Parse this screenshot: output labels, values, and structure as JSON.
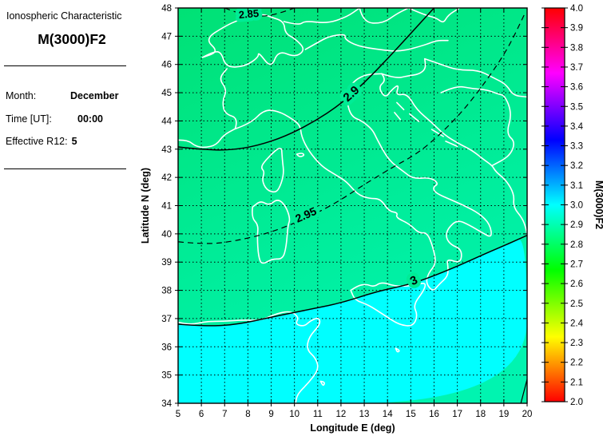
{
  "sidebar": {
    "title": "Ionospheric Characteristic",
    "subtitle": "M(3000)F2",
    "fields": [
      {
        "label": "Month:",
        "value": "December"
      },
      {
        "label": "Time [UT]:",
        "value": "00:00"
      },
      {
        "label": "Effective R12:",
        "value": "5"
      }
    ]
  },
  "chart_data": {
    "type": "contour-map",
    "title": "M(3000)F2",
    "xlabel": "Longitude E (deg)",
    "ylabel": "Latitude N (deg)",
    "xlim": [
      5,
      20
    ],
    "ylim": [
      34,
      48
    ],
    "xticks": [
      5,
      6,
      7,
      8,
      9,
      10,
      11,
      12,
      13,
      14,
      15,
      16,
      17,
      18,
      19,
      20
    ],
    "yticks": [
      34,
      35,
      36,
      37,
      38,
      39,
      40,
      41,
      42,
      43,
      44,
      45,
      46,
      47,
      48
    ],
    "grid": "dotted",
    "colors": {
      "green_low": "#00E175",
      "green_high": "#00F4B0",
      "cyan_region": "#00FFFF",
      "corner_patch": "#00F2A6",
      "coastline": "#FFFFFF",
      "contour": "#000000",
      "halo": "#00EC96"
    },
    "colorbar": {
      "label": "M(3000)F2",
      "min": 2.0,
      "max": 4.0,
      "tick_labels": [
        "4.0",
        "3.9",
        "3.8",
        "3.7",
        "3.6",
        "3.5",
        "3.4",
        "3.3",
        "3.2",
        "3.1",
        "3.0",
        "2.9",
        "2.8",
        "2.7",
        "2.6",
        "2.5",
        "2.4",
        "2.3",
        "2.2",
        "2.1",
        "2.0"
      ],
      "colormap": "hsv",
      "stops": [
        {
          "v": 4.0,
          "c": "#FF0000"
        },
        {
          "v": 3.67,
          "c": "#FF00FF"
        },
        {
          "v": 3.33,
          "c": "#0000FF"
        },
        {
          "v": 3.0,
          "c": "#00FFFF"
        },
        {
          "v": 2.67,
          "c": "#00FF00"
        },
        {
          "v": 2.33,
          "c": "#FFFF00"
        },
        {
          "v": 2.0,
          "c": "#FF0000"
        }
      ]
    },
    "contours": [
      {
        "value": 2.85,
        "label": "2.85",
        "style": "dashed",
        "label_pos": [
          8.05,
          47.66
        ],
        "label_rot": -5,
        "label_size": 13,
        "points": [
          [
            7.0,
            48.0
          ],
          [
            7.5,
            47.84
          ],
          [
            8.0,
            47.74
          ],
          [
            8.7,
            47.7
          ],
          [
            9.3,
            47.8
          ],
          [
            10.0,
            48.0
          ]
        ]
      },
      {
        "value": 2.9,
        "label": "2.9",
        "style": "solid",
        "label_pos": [
          12.55,
          44.86
        ],
        "label_rot": -42,
        "label_size": 15,
        "points": [
          [
            5,
            43.08
          ],
          [
            6.2,
            42.97
          ],
          [
            7.3,
            42.97
          ],
          [
            8.4,
            43.12
          ],
          [
            9.6,
            43.45
          ],
          [
            10.8,
            43.95
          ],
          [
            12.0,
            44.6
          ],
          [
            13.0,
            45.35
          ],
          [
            14.0,
            46.2
          ],
          [
            15.0,
            47.1
          ],
          [
            16.0,
            48.0
          ]
        ]
      },
      {
        "value": 2.95,
        "label": "2.95",
        "style": "dashed",
        "label_pos": [
          10.56,
          40.55
        ],
        "label_rot": -24,
        "label_size": 14,
        "points": [
          [
            5,
            39.72
          ],
          [
            6.2,
            39.62
          ],
          [
            7.5,
            39.75
          ],
          [
            9.0,
            40.05
          ],
          [
            10.5,
            40.55
          ],
          [
            11.8,
            41.1
          ],
          [
            13.0,
            41.75
          ],
          [
            14.2,
            42.35
          ],
          [
            15.3,
            42.85
          ],
          [
            16.3,
            43.55
          ],
          [
            17.4,
            44.5
          ],
          [
            18.4,
            45.6
          ],
          [
            19.2,
            46.6
          ],
          [
            19.9,
            47.8
          ]
        ]
      },
      {
        "value": 3,
        "label": "3",
        "style": "solid",
        "label_pos": [
          15.2,
          38.22
        ],
        "label_rot": -25,
        "label_size": 15,
        "points": [
          [
            5,
            36.8
          ],
          [
            6.3,
            36.72
          ],
          [
            7.6,
            36.8
          ],
          [
            9.0,
            37.05
          ],
          [
            10.5,
            37.3
          ],
          [
            12.0,
            37.55
          ],
          [
            13.5,
            37.95
          ],
          [
            14.9,
            38.2
          ],
          [
            15.8,
            38.45
          ],
          [
            17.0,
            38.85
          ],
          [
            18.2,
            39.3
          ],
          [
            19.2,
            39.65
          ],
          [
            20,
            39.95
          ]
        ]
      }
    ],
    "corner_contour": [
      [
        19.73,
        34
      ],
      [
        20,
        34.85
      ]
    ],
    "coastlines": [
      [
        [
          5,
          43.32
        ],
        [
          5.4,
          43.33
        ],
        [
          5.75,
          43.1
        ],
        [
          6.15,
          43.05
        ],
        [
          6.65,
          43.15
        ],
        [
          6.95,
          43.5
        ],
        [
          7.45,
          43.72
        ]
      ],
      [
        [
          7.45,
          43.72
        ],
        [
          7.6,
          44.1
        ],
        [
          7.0,
          44.25
        ],
        [
          6.9,
          44.7
        ],
        [
          7.1,
          45.1
        ],
        [
          6.75,
          45.5
        ],
        [
          7.1,
          45.85
        ]
      ],
      [
        [
          7.45,
          43.72
        ],
        [
          8.1,
          43.9
        ],
        [
          8.7,
          44.4
        ],
        [
          9.3,
          44.35
        ],
        [
          9.85,
          44.1
        ],
        [
          10.25,
          43.85
        ],
        [
          10.3,
          43.45
        ],
        [
          10.6,
          42.95
        ],
        [
          11.15,
          42.4
        ],
        [
          11.75,
          42.1
        ],
        [
          12.25,
          41.85
        ],
        [
          12.7,
          41.4
        ],
        [
          13.2,
          41.25
        ],
        [
          13.7,
          41.25
        ],
        [
          14.05,
          40.8
        ],
        [
          14.45,
          40.75
        ],
        [
          14.35,
          40.58
        ],
        [
          14.95,
          40.35
        ],
        [
          15.35,
          40.02
        ],
        [
          15.7,
          40.05
        ],
        [
          15.95,
          39.55
        ],
        [
          16.1,
          38.95
        ],
        [
          15.75,
          38.6
        ],
        [
          15.65,
          38.25
        ],
        [
          15.95,
          37.95
        ],
        [
          16.2,
          38.2
        ],
        [
          16.6,
          38.5
        ],
        [
          16.6,
          38.85
        ],
        [
          16.55,
          39.12
        ],
        [
          17.15,
          38.95
        ],
        [
          17.2,
          39.45
        ],
        [
          16.7,
          39.62
        ],
        [
          16.5,
          39.9
        ],
        [
          16.6,
          40.2
        ],
        [
          17.0,
          40.5
        ],
        [
          17.5,
          40.32
        ],
        [
          18.05,
          40.05
        ],
        [
          18.5,
          39.85
        ],
        [
          18.4,
          40.35
        ],
        [
          17.95,
          40.72
        ],
        [
          17.25,
          41.02
        ],
        [
          16.8,
          41.18
        ],
        [
          16.05,
          41.45
        ],
        [
          15.95,
          41.65
        ],
        [
          16.2,
          41.78
        ],
        [
          15.85,
          42.0
        ],
        [
          15.1,
          41.95
        ],
        [
          14.7,
          42.2
        ],
        [
          14.05,
          42.6
        ],
        [
          13.55,
          43.35
        ],
        [
          13.35,
          43.7
        ],
        [
          12.9,
          44.0
        ],
        [
          12.45,
          44.15
        ],
        [
          12.25,
          44.65
        ],
        [
          12.3,
          45.1
        ],
        [
          12.6,
          45.45
        ],
        [
          13.1,
          45.65
        ],
        [
          13.75,
          45.67
        ]
      ],
      [
        [
          13.75,
          45.67
        ],
        [
          13.95,
          45.45
        ],
        [
          13.6,
          45.2
        ],
        [
          13.9,
          44.8
        ],
        [
          14.2,
          45.12
        ],
        [
          14.5,
          45.3
        ],
        [
          14.35,
          44.9
        ],
        [
          14.85,
          44.97
        ],
        [
          15.25,
          44.4
        ],
        [
          15.9,
          43.95
        ],
        [
          16.45,
          43.5
        ],
        [
          17.1,
          43.18
        ],
        [
          17.65,
          42.95
        ],
        [
          18.15,
          42.62
        ],
        [
          18.5,
          42.42
        ],
        [
          18.65,
          42.2
        ],
        [
          19.1,
          41.9
        ],
        [
          19.45,
          41.4
        ],
        [
          19.4,
          40.95
        ],
        [
          19.8,
          40.55
        ],
        [
          19.95,
          40.2
        ],
        [
          20,
          39.95
        ]
      ],
      [
        [
          12.42,
          38.0
        ],
        [
          12.72,
          38.17
        ],
        [
          13.1,
          38.22
        ],
        [
          13.4,
          38.12
        ],
        [
          13.75,
          38.3
        ],
        [
          14.3,
          38.15
        ],
        [
          14.9,
          38.15
        ],
        [
          15.3,
          38.22
        ],
        [
          15.65,
          38.27
        ],
        [
          15.57,
          38.0
        ],
        [
          15.1,
          37.48
        ],
        [
          15.3,
          37.12
        ],
        [
          15.1,
          36.72
        ],
        [
          14.5,
          36.78
        ],
        [
          13.9,
          37.1
        ],
        [
          13.15,
          37.5
        ],
        [
          12.6,
          37.65
        ],
        [
          12.42,
          38.0
        ]
      ],
      [
        [
          8.2,
          40.95
        ],
        [
          8.15,
          40.58
        ],
        [
          8.45,
          40.32
        ],
        [
          8.4,
          39.9
        ],
        [
          8.45,
          39.2
        ],
        [
          8.6,
          38.9
        ],
        [
          9.05,
          39.12
        ],
        [
          9.5,
          39.1
        ],
        [
          9.65,
          39.55
        ],
        [
          9.72,
          40.3
        ],
        [
          9.82,
          40.53
        ],
        [
          9.62,
          41.0
        ],
        [
          9.28,
          41.25
        ],
        [
          8.9,
          41.0
        ],
        [
          8.55,
          41.18
        ],
        [
          8.2,
          40.95
        ]
      ],
      [
        [
          9.45,
          43.0
        ],
        [
          9.48,
          42.6
        ],
        [
          9.55,
          42.15
        ],
        [
          9.4,
          41.7
        ],
        [
          9.2,
          41.45
        ],
        [
          8.8,
          41.55
        ],
        [
          8.6,
          41.9
        ],
        [
          8.72,
          42.2
        ],
        [
          8.55,
          42.35
        ],
        [
          8.75,
          42.6
        ],
        [
          9.3,
          43.05
        ],
        [
          9.45,
          43.0
        ]
      ],
      [
        [
          10.1,
          42.82
        ],
        [
          10.32,
          42.88
        ],
        [
          10.44,
          42.78
        ],
        [
          10.22,
          42.72
        ],
        [
          10.1,
          42.82
        ]
      ],
      [
        [
          5,
          36.87
        ],
        [
          5.5,
          36.77
        ],
        [
          6.2,
          36.9
        ],
        [
          6.95,
          36.9
        ],
        [
          7.75,
          36.95
        ],
        [
          8.55,
          36.93
        ],
        [
          9.15,
          37.15
        ],
        [
          9.8,
          37.28
        ],
        [
          10.2,
          37.05
        ],
        [
          10.03,
          36.8
        ],
        [
          10.42,
          36.72
        ],
        [
          10.68,
          36.92
        ],
        [
          11.05,
          37.05
        ],
        [
          11.12,
          36.8
        ],
        [
          10.62,
          36.35
        ],
        [
          10.52,
          35.9
        ],
        [
          10.92,
          35.6
        ],
        [
          11.05,
          35.2
        ],
        [
          10.6,
          34.72
        ],
        [
          10.12,
          34.32
        ],
        [
          10.05,
          34.0
        ]
      ],
      [
        [
          11.12,
          34.78
        ],
        [
          11.32,
          34.76
        ],
        [
          11.24,
          34.6
        ],
        [
          11.12,
          34.78
        ]
      ],
      [
        [
          14.35,
          35.95
        ],
        [
          14.55,
          35.87
        ],
        [
          14.42,
          35.8
        ],
        [
          14.35,
          35.95
        ]
      ],
      [
        [
          6.05,
          46.25
        ],
        [
          6.5,
          46.45
        ],
        [
          6.85,
          46.45
        ],
        [
          7.05,
          45.9
        ],
        [
          7.85,
          45.92
        ],
        [
          8.45,
          46.25
        ],
        [
          8.45,
          46.45
        ],
        [
          9.0,
          45.85
        ],
        [
          9.3,
          46.5
        ],
        [
          10.05,
          46.25
        ],
        [
          10.47,
          46.53
        ],
        [
          10.05,
          46.9
        ],
        [
          9.6,
          47.1
        ],
        [
          9.55,
          47.52
        ],
        [
          9.0,
          47.68
        ],
        [
          8.55,
          47.8
        ],
        [
          7.6,
          47.58
        ],
        [
          7.0,
          47.35
        ],
        [
          6.15,
          46.9
        ],
        [
          6.75,
          46.45
        ],
        [
          6.05,
          46.25
        ]
      ],
      [
        [
          10.47,
          46.53
        ],
        [
          11.0,
          46.78
        ],
        [
          11.5,
          47.0
        ],
        [
          12.2,
          47.08
        ],
        [
          12.15,
          46.9
        ],
        [
          12.7,
          46.65
        ],
        [
          13.7,
          46.52
        ],
        [
          14.55,
          46.45
        ],
        [
          15.65,
          46.7
        ],
        [
          16.1,
          46.85
        ],
        [
          16.6,
          46.85
        ]
      ],
      [
        [
          9.55,
          47.52
        ],
        [
          10.2,
          47.38
        ],
        [
          10.45,
          47.55
        ],
        [
          11.4,
          47.45
        ],
        [
          12.25,
          47.68
        ],
        [
          12.8,
          48.0
        ]
      ],
      [
        [
          12.8,
          48.0
        ],
        [
          12.95,
          47.48
        ],
        [
          13.8,
          47.45
        ],
        [
          14.4,
          47.8
        ],
        [
          14.9,
          48.0
        ]
      ],
      [
        [
          14.9,
          48.0
        ],
        [
          15.6,
          47.75
        ],
        [
          16.1,
          47.65
        ],
        [
          16.4,
          47.45
        ],
        [
          16.6,
          47.75
        ],
        [
          17.1,
          48.0
        ]
      ],
      [
        [
          13.75,
          45.67
        ],
        [
          14.35,
          45.5
        ],
        [
          14.9,
          45.6
        ],
        [
          15.35,
          45.65
        ],
        [
          15.65,
          45.85
        ],
        [
          15.6,
          46.2
        ]
      ],
      [
        [
          15.6,
          46.2
        ],
        [
          16.3,
          46.0
        ],
        [
          17.0,
          45.8
        ],
        [
          17.9,
          45.8
        ],
        [
          18.5,
          45.55
        ],
        [
          19.1,
          45.3
        ],
        [
          19.4,
          44.9
        ],
        [
          20,
          44.85
        ]
      ],
      [
        [
          16.3,
          45.0
        ],
        [
          16.95,
          45.25
        ],
        [
          17.6,
          45.15
        ],
        [
          18.3,
          45.1
        ],
        [
          18.75,
          44.95
        ],
        [
          19.05,
          44.9
        ],
        [
          19.35,
          44.25
        ],
        [
          19.1,
          43.55
        ],
        [
          19.5,
          43.25
        ],
        [
          19.25,
          42.75
        ],
        [
          18.5,
          42.42
        ]
      ],
      [
        [
          14.4,
          44.65
        ],
        [
          14.7,
          44.4
        ]
      ],
      [
        [
          14.3,
          44.3
        ],
        [
          14.55,
          44.05
        ]
      ],
      [
        [
          14.95,
          44.25
        ],
        [
          15.35,
          43.98
        ]
      ],
      [
        [
          15.9,
          43.7
        ],
        [
          16.4,
          43.45
        ]
      ],
      [
        [
          16.5,
          43.28
        ],
        [
          17.0,
          43.1
        ]
      ]
    ]
  }
}
